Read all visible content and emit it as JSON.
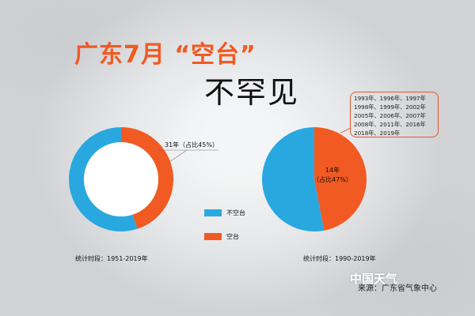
{
  "title": {
    "line1": "广东7月 “空台”",
    "line2": "不罕见"
  },
  "colors": {
    "no_typhoon": "#29a8e0",
    "typhoon": "#f15a22",
    "accent": "#e8552a"
  },
  "chart_data": [
    {
      "type": "pie",
      "variant": "donut",
      "period_label": "统计时段：1951-2019年",
      "slices": [
        {
          "name": "空台",
          "value": 45,
          "color": "#f15a22"
        },
        {
          "name": "不空台",
          "value": 55,
          "color": "#29a8e0"
        }
      ],
      "annotation": "31年（占比45%）"
    },
    {
      "type": "pie",
      "variant": "pie",
      "period_label": "统计时段：1990-2019年",
      "slices": [
        {
          "name": "空台",
          "value": 47,
          "color": "#f15a22"
        },
        {
          "name": "不空台",
          "value": 53,
          "color": "#29a8e0"
        }
      ],
      "annotation_lines": [
        "14年",
        "（占比47%）"
      ],
      "years": [
        "1993年、1996年、1997年",
        "1998年、1999年、2002年",
        "2005年、2006年、2007年",
        "2008年、2011年、2016年",
        "2018年、2019年"
      ]
    }
  ],
  "legend": [
    {
      "label": "不空台",
      "color": "#29a8e0"
    },
    {
      "label": "空台",
      "color": "#f15a22"
    }
  ],
  "footer": {
    "source": "来源：广东省气象中心",
    "logo": "中国天气"
  }
}
